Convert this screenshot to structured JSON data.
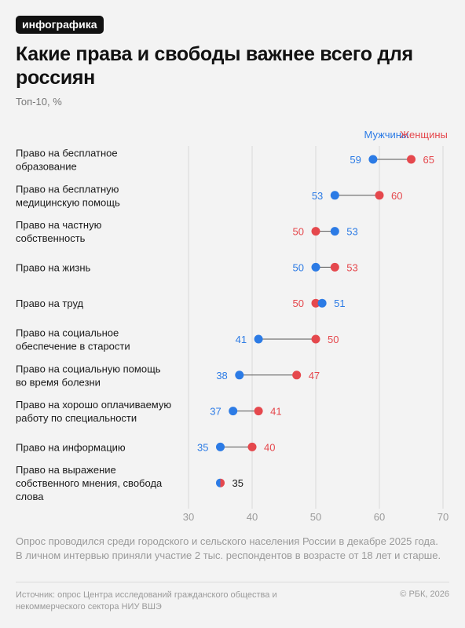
{
  "badge": "инфографика",
  "title": "Какие права и свободы важнее всего для россиян",
  "subtitle": "Топ-10, %",
  "footnote": "Опрос проводился среди городского и сельского населения России в декабре 2025 года. В личном интервью приняли участие 2 тыс. респондентов в возрасте от 18 лет и старше.",
  "source": "Источник: опрос Центра исследований гражданского общества и некоммерческого сектора НИУ ВШЭ",
  "copyright": "© РБК, 2026",
  "colors": {
    "men": "#2c7be5",
    "women": "#e5484d",
    "connector": "#555555",
    "grid": "#d9d9d9"
  },
  "chart_data": {
    "type": "scatter",
    "subtype": "dumbbell",
    "xlim": [
      30,
      70
    ],
    "xticks": [
      30,
      40,
      50,
      60,
      70
    ],
    "grid": true,
    "legend_placement": "top-right",
    "categories": [
      [
        "Право на бесплатное",
        "образование"
      ],
      [
        "Право на бесплатную",
        "медицинскую помощь"
      ],
      [
        "Право на частную",
        "собственность"
      ],
      [
        "Право на жизнь"
      ],
      [
        "Право на труд"
      ],
      [
        "Право на социальное",
        "обеспечение в старости"
      ],
      [
        "Право на социальную помощь",
        "во время болезни"
      ],
      [
        "Право на хорошо оплачиваемую",
        "работу по специальности"
      ],
      [
        "Право на информацию"
      ],
      [
        "Право на выражение",
        "собственного мнения, свобода",
        "слова"
      ]
    ],
    "series": [
      {
        "name": "Мужчины",
        "values": [
          59,
          53,
          53,
          50,
          51,
          41,
          38,
          37,
          35,
          35
        ]
      },
      {
        "name": "Женщины",
        "values": [
          65,
          60,
          50,
          53,
          50,
          50,
          47,
          41,
          40,
          35
        ]
      }
    ]
  }
}
